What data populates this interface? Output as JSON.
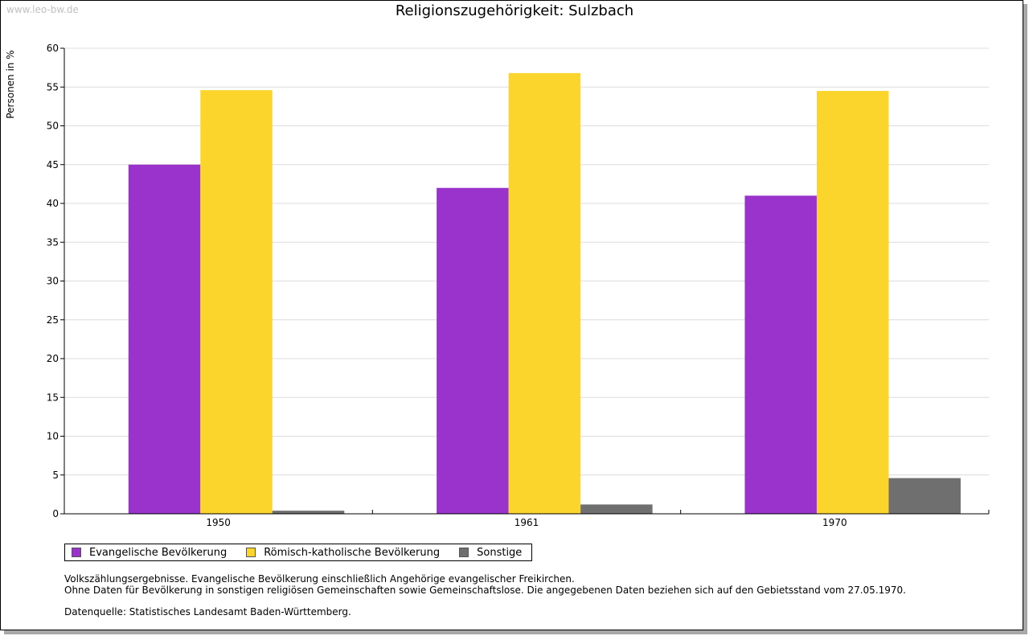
{
  "watermark": "www.leo-bw.de",
  "chart_data": {
    "type": "bar",
    "title": "Religionszugehörigkeit: Sulzbach",
    "xlabel": "",
    "ylabel": "Personen in %",
    "ylim": [
      0,
      60
    ],
    "yticks": [
      0,
      5,
      10,
      15,
      20,
      25,
      30,
      35,
      40,
      45,
      50,
      55,
      60
    ],
    "grid": true,
    "categories": [
      "1950",
      "1961",
      "1970"
    ],
    "series": [
      {
        "name": "Evangelische Bevölkerung",
        "color": "#9933cc",
        "values": [
          45.0,
          42.0,
          41.0
        ]
      },
      {
        "name": "Römisch-katholische Bevölkerung",
        "color": "#fcd52c",
        "values": [
          54.6,
          56.8,
          54.5
        ]
      },
      {
        "name": "Sonstige",
        "color": "#6f6f6f",
        "values": [
          0.4,
          1.2,
          4.6
        ]
      }
    ],
    "legend": "bottom-left"
  },
  "notes": {
    "line1": "Volkszählungsergebnisse. Evangelische Bevölkerung einschließlich Angehörige evangelischer Freikirchen.",
    "line2": "Ohne Daten für Bevölkerung in sonstigen religiösen Gemeinschaften sowie Gemeinschaftslose. Die angegebenen Daten beziehen sich auf den Gebietsstand vom 27.05.1970.",
    "source": "Datenquelle: Statistisches Landesamt Baden-Württemberg."
  }
}
